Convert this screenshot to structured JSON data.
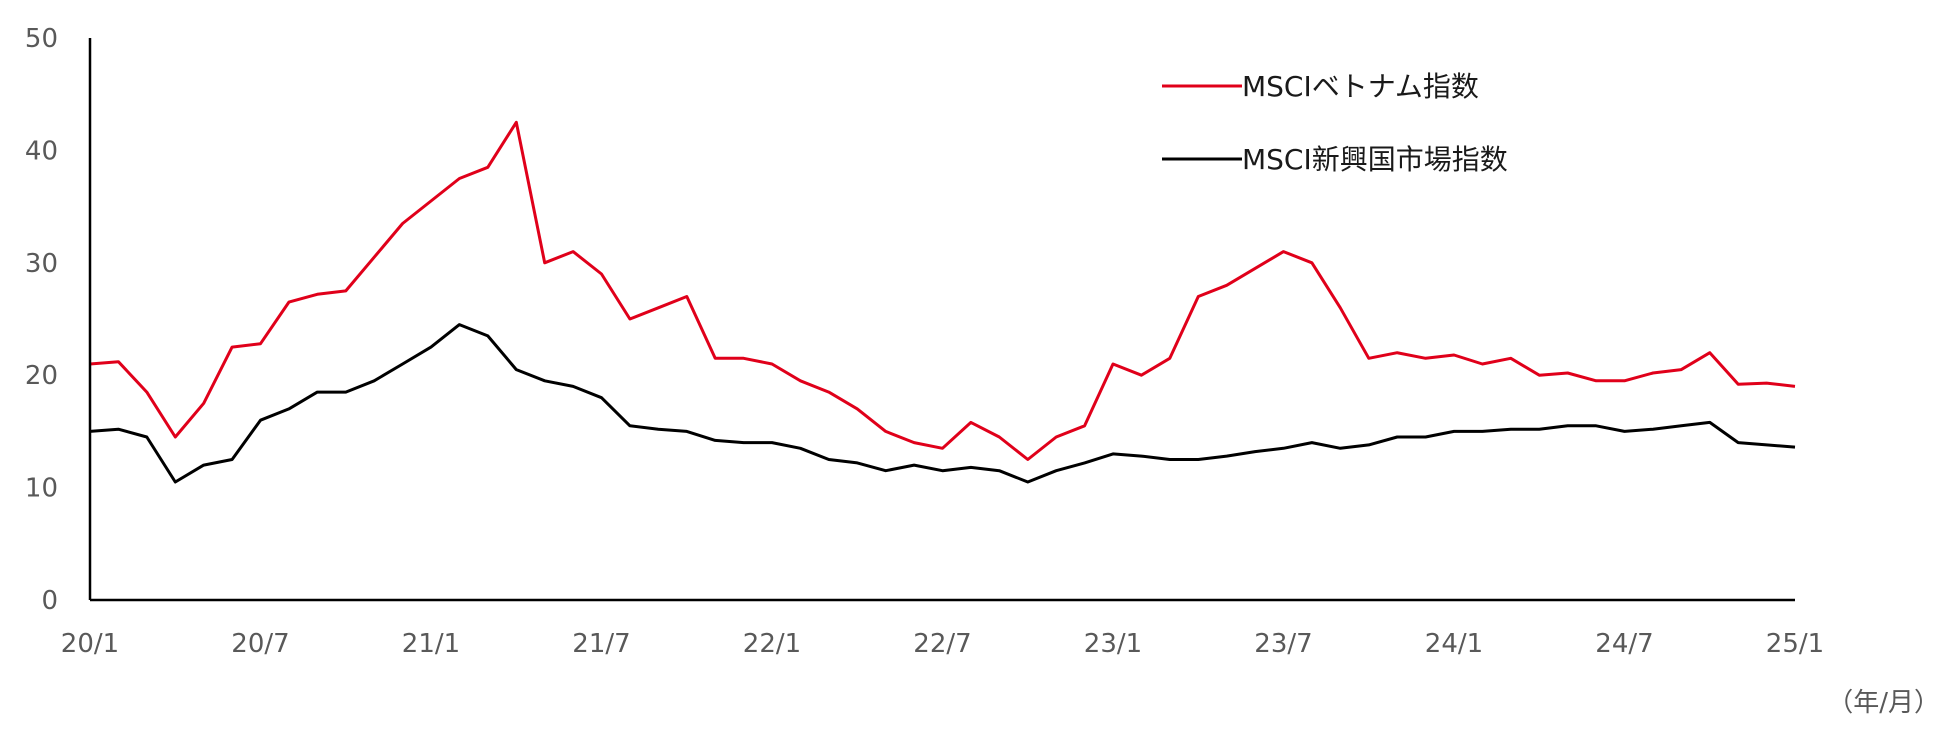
{
  "chart_data": {
    "type": "line",
    "title": "",
    "xlabel": "",
    "ylabel": "",
    "x_unit_label": "（年/月）",
    "x_tick_labels": [
      "20/1",
      "20/7",
      "21/1",
      "21/7",
      "22/1",
      "22/7",
      "23/1",
      "23/7",
      "24/1",
      "24/7",
      "25/1"
    ],
    "y_ticks": [
      "0",
      "10",
      "20",
      "30",
      "40",
      "50"
    ],
    "ylim": [
      0,
      50
    ],
    "grid": false,
    "legend_position": "top-right",
    "x": [
      "20/1",
      "20/2",
      "20/3",
      "20/4",
      "20/5",
      "20/6",
      "20/7",
      "20/8",
      "20/9",
      "20/10",
      "20/11",
      "20/12",
      "21/1",
      "21/2",
      "21/3",
      "21/4",
      "21/5",
      "21/6",
      "21/7",
      "21/8",
      "21/9",
      "21/10",
      "21/11",
      "21/12",
      "22/1",
      "22/2",
      "22/3",
      "22/4",
      "22/5",
      "22/6",
      "22/7",
      "22/8",
      "22/9",
      "22/10",
      "22/11",
      "22/12",
      "23/1",
      "23/2",
      "23/3",
      "23/4",
      "23/5",
      "23/6",
      "23/7",
      "23/8",
      "23/9",
      "23/10",
      "23/11",
      "23/12",
      "24/1",
      "24/2",
      "24/3",
      "24/4",
      "24/5",
      "24/6",
      "24/7",
      "24/8",
      "24/9",
      "24/10",
      "24/11",
      "24/12",
      "25/1"
    ],
    "series": [
      {
        "name": "MSCIベトナム指数",
        "color": "#e0001a",
        "values": [
          21.0,
          21.2,
          18.5,
          14.5,
          17.5,
          22.5,
          22.8,
          26.5,
          27.2,
          27.5,
          30.5,
          33.5,
          35.5,
          37.5,
          38.5,
          42.5,
          30.0,
          31.0,
          29.0,
          25.0,
          26.0,
          27.0,
          21.5,
          21.5,
          21.0,
          19.5,
          18.5,
          17.0,
          15.0,
          14.0,
          13.5,
          15.8,
          14.5,
          12.5,
          14.5,
          15.5,
          21.0,
          20.0,
          21.5,
          27.0,
          28.0,
          29.5,
          31.0,
          30.0,
          26.0,
          21.5,
          22.0,
          21.5,
          21.8,
          21.0,
          21.5,
          20.0,
          20.2,
          19.5,
          19.5,
          20.2,
          20.5,
          22.0,
          19.2,
          19.3,
          19.0
        ]
      },
      {
        "name": "MSCI新興国市場指数",
        "color": "#000000",
        "values": [
          15.0,
          15.2,
          14.5,
          10.5,
          12.0,
          12.5,
          16.0,
          17.0,
          18.5,
          18.5,
          19.5,
          21.0,
          22.5,
          24.5,
          23.5,
          20.5,
          19.5,
          19.0,
          18.0,
          15.5,
          15.2,
          15.0,
          14.2,
          14.0,
          14.0,
          13.5,
          12.5,
          12.2,
          11.5,
          12.0,
          11.5,
          11.8,
          11.5,
          10.5,
          11.5,
          12.2,
          13.0,
          12.8,
          12.5,
          12.5,
          12.8,
          13.2,
          13.5,
          14.0,
          13.5,
          13.8,
          14.5,
          14.5,
          15.0,
          15.0,
          15.2,
          15.2,
          15.5,
          15.5,
          15.0,
          15.2,
          15.5,
          15.8,
          14.0,
          13.8,
          13.6
        ]
      }
    ]
  }
}
